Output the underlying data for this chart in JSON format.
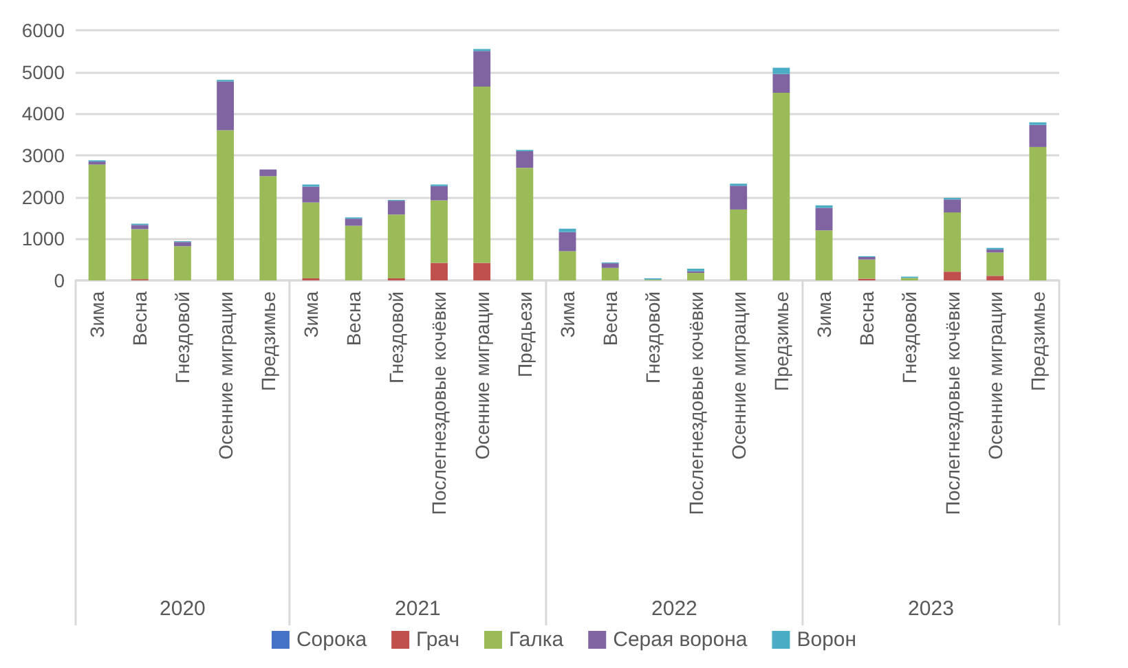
{
  "chart_data": {
    "type": "bar",
    "stacked": true,
    "categories": [
      "Зима",
      "Весна",
      "Гнездовой",
      "Осенние миграции",
      "Предзимье",
      "Зима",
      "Весна",
      "Гнездовой",
      "Послегнездовые кочёвки",
      "Осенние миграции",
      "Предьези",
      "Зима",
      "Весна",
      "Гнездовой",
      "Послегнездовые кочёвки",
      "Осенние миграции",
      "Предзимье",
      "Зима",
      "Весна",
      "Гнездовой",
      "Послегнездовые кочёвки",
      "Осенние миграции",
      "Предзимье"
    ],
    "series": [
      {
        "name": "Сорока",
        "color": "#4472c4",
        "values": [
          0,
          0,
          0,
          0,
          0,
          0,
          0,
          0,
          0,
          0,
          0,
          0,
          0,
          0,
          0,
          0,
          0,
          0,
          0,
          0,
          0,
          0,
          0
        ]
      },
      {
        "name": "Грач",
        "color": "#c0504d",
        "values": [
          0,
          30,
          0,
          0,
          0,
          50,
          0,
          50,
          420,
          420,
          0,
          0,
          0,
          0,
          0,
          0,
          0,
          0,
          40,
          0,
          210,
          110,
          0
        ]
      },
      {
        "name": "Галка",
        "color": "#9bbb59",
        "values": [
          2780,
          1200,
          820,
          3600,
          2500,
          1820,
          1310,
          1530,
          1500,
          4230,
          2700,
          700,
          300,
          20,
          180,
          1700,
          4500,
          1200,
          460,
          60,
          1420,
          560,
          3200
        ]
      },
      {
        "name": "Серая ворона",
        "color": "#8064a2",
        "values": [
          70,
          100,
          100,
          1170,
          160,
          380,
          170,
          330,
          340,
          850,
          400,
          460,
          110,
          0,
          40,
          570,
          450,
          540,
          60,
          0,
          310,
          70,
          530
        ]
      },
      {
        "name": "Ворон",
        "color": "#4bacc6",
        "values": [
          30,
          30,
          20,
          40,
          0,
          50,
          30,
          20,
          40,
          50,
          30,
          80,
          20,
          30,
          60,
          50,
          150,
          60,
          20,
          30,
          40,
          40,
          60
        ]
      }
    ],
    "ylim": [
      0,
      6000
    ],
    "yticks": [
      0,
      1000,
      2000,
      3000,
      4000,
      5000,
      6000
    ],
    "grid": "y",
    "legend": "bottom",
    "annotations": [
      "2020",
      "2021",
      "2022",
      "2023"
    ]
  }
}
